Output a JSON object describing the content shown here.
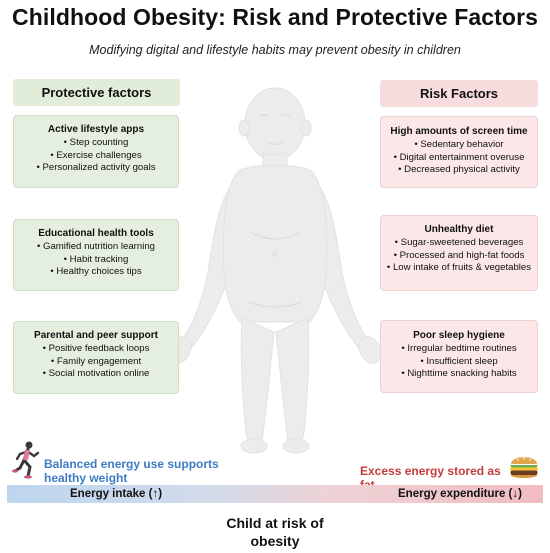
{
  "title": "Childhood Obesity: Risk and Protective Factors",
  "subtitle": "Modifying digital and lifestyle habits may prevent obesity in children",
  "protective": {
    "heading": "Protective factors",
    "boxes": [
      {
        "title": "Active lifestyle apps",
        "items": [
          "• Step counting",
          "• Exercise challenges",
          "• Personalized activity goals"
        ]
      },
      {
        "title": "Educational health tools",
        "items": [
          "• Gamified nutrition learning",
          "• Habit tracking",
          "• Healthy choices tips"
        ]
      },
      {
        "title": "Parental and peer support",
        "items": [
          "• Positive feedback loops",
          "• Family engagement",
          "• Social motivation online"
        ]
      }
    ]
  },
  "risk": {
    "heading": "Risk Factors",
    "boxes": [
      {
        "title": "High amounts of screen time",
        "items": [
          "• Sedentary behavior",
          "• Digital entertainment overuse",
          "• Decreased physical activity"
        ]
      },
      {
        "title": "Unhealthy diet",
        "items": [
          "• Sugar-sweetened beverages",
          "• Processed and high-fat foods",
          "• Low intake of fruits & vegetables"
        ]
      },
      {
        "title": "Poor sleep hygiene",
        "items": [
          "• Irregular bedtime routines",
          "• Insufficient sleep",
          "• Nighttime snacking habits"
        ]
      }
    ]
  },
  "bottom": {
    "balanced": "Balanced energy use supports healthy weight",
    "excess": "Excess energy stored as fat",
    "energy_intake": "Energy intake (↑)",
    "energy_expenditure": "Energy expenditure (↓)",
    "child_label": "Child at risk of obesity"
  },
  "colors": {
    "protective_bg": "#e5efdf",
    "risk_bg": "#fbe7e7",
    "balanced_text": "#3e7cc4",
    "excess_text": "#c53b3b",
    "silhouette": "#ececec"
  },
  "icons": {
    "runner": "runner-icon",
    "burger": "burger-icon",
    "child": "child-silhouette"
  }
}
